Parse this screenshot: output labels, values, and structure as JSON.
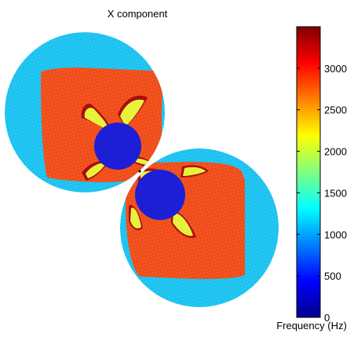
{
  "chart_data": {
    "type": "heatmap",
    "title": "X component",
    "xlabel": "",
    "ylabel": "",
    "grid": false,
    "colormap": "jet",
    "colorbar": {
      "label": "Frequency (Hz)",
      "ticks": [
        0,
        500,
        1000,
        1500,
        2000,
        2500,
        3000
      ],
      "tick_labels": [
        "0",
        "500",
        "1000",
        "1500",
        "2000",
        "2500",
        "3000"
      ],
      "range": [
        0,
        3500
      ],
      "placement": "right"
    },
    "regions": [
      {
        "name": "outer rim",
        "value": 1100,
        "color": "#19c2f0"
      },
      {
        "name": "main lobe",
        "value": 2950,
        "color": "#f04b16"
      },
      {
        "name": "lobe edge",
        "value": 3300,
        "color": "#a80e0e"
      },
      {
        "name": "petals",
        "value": 2250,
        "color": "#e8f23a"
      },
      {
        "name": "core",
        "value": 500,
        "color": "#1c1fd6"
      }
    ]
  }
}
